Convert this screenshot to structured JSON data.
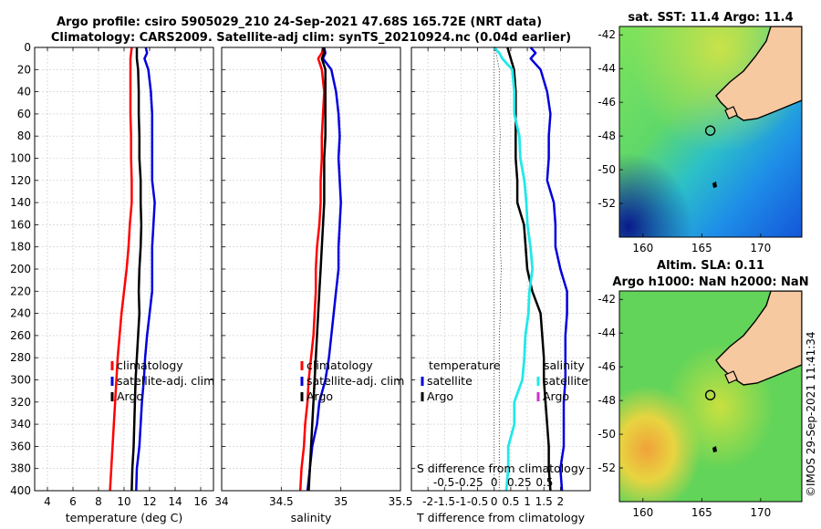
{
  "header": {
    "line1": "Argo profile: csiro 5905029_210 24-Sep-2021 47.68S 165.72E (NRT data)",
    "line2": "Climatology: CARS2009. Satellite-adj clim: synTS_20210924.nc (0.04d earlier)"
  },
  "colors": {
    "climatology": "#ff0000",
    "satellite": "#0000dd",
    "argo": "#000000",
    "s_sat": "#22e8e8",
    "s_argo": "#cc33cc",
    "land": "#f7c9a0"
  },
  "depth_axis": {
    "ylim": [
      0,
      400
    ],
    "ticks": [
      0,
      20,
      40,
      60,
      80,
      100,
      120,
      140,
      160,
      180,
      200,
      220,
      240,
      260,
      280,
      300,
      320,
      340,
      360,
      380,
      400
    ]
  },
  "chart_data": [
    {
      "id": "temperature",
      "type": "line",
      "xlabel": "temperature (deg C)",
      "ylabel": "",
      "xlim": [
        3,
        17
      ],
      "ylim": [
        400,
        0
      ],
      "xticks": [
        4,
        6,
        8,
        10,
        12,
        14,
        16
      ],
      "xtick_labels": [
        "4",
        "6",
        "8",
        "10",
        "12",
        "14",
        "16"
      ],
      "depth": [
        0,
        5,
        10,
        20,
        40,
        60,
        80,
        100,
        120,
        140,
        160,
        180,
        200,
        220,
        240,
        260,
        280,
        300,
        320,
        340,
        360,
        380,
        400
      ],
      "series": [
        {
          "name": "climatology",
          "values": [
            10.6,
            10.55,
            10.5,
            10.5,
            10.5,
            10.5,
            10.55,
            10.55,
            10.6,
            10.6,
            10.45,
            10.35,
            10.2,
            10.0,
            9.8,
            9.65,
            9.5,
            9.4,
            9.3,
            9.2,
            9.1,
            9.0,
            8.9
          ]
        },
        {
          "name": "satellite-adj. clim",
          "values": [
            11.7,
            11.8,
            11.6,
            11.9,
            12.1,
            12.2,
            12.2,
            12.2,
            12.2,
            12.4,
            12.3,
            12.2,
            12.2,
            12.2,
            12.0,
            11.8,
            11.65,
            11.55,
            11.4,
            11.3,
            11.2,
            11.0,
            10.95
          ]
        },
        {
          "name": "Argo",
          "values": [
            11.0,
            11.0,
            11.0,
            11.1,
            11.15,
            11.15,
            11.2,
            11.2,
            11.3,
            11.3,
            11.35,
            11.3,
            11.2,
            11.15,
            11.2,
            11.1,
            11.0,
            10.9,
            10.85,
            10.8,
            10.75,
            10.65,
            10.6
          ]
        }
      ],
      "legend": [
        "climatology",
        "satellite-adj. clim",
        "Argo"
      ]
    },
    {
      "id": "salinity",
      "type": "line",
      "xlabel": "salinity",
      "ylabel": "",
      "xlim": [
        34,
        35.5
      ],
      "xticks": [
        34,
        34.5,
        35,
        35.5
      ],
      "xtick_labels": [
        "34",
        "34.5",
        "35",
        "35.5"
      ],
      "depth": [
        0,
        5,
        10,
        20,
        40,
        60,
        80,
        100,
        120,
        140,
        160,
        180,
        200,
        220,
        240,
        260,
        280,
        300,
        320,
        340,
        360,
        380,
        400
      ],
      "series": [
        {
          "name": "climatology",
          "values": [
            34.85,
            34.84,
            34.81,
            34.84,
            34.86,
            34.85,
            34.84,
            34.84,
            34.83,
            34.83,
            34.82,
            34.8,
            34.79,
            34.79,
            34.78,
            34.77,
            34.75,
            34.73,
            34.72,
            34.7,
            34.69,
            34.67,
            34.66
          ]
        },
        {
          "name": "satellite-adj. clim",
          "values": [
            34.86,
            34.87,
            34.85,
            34.92,
            34.96,
            34.98,
            34.99,
            34.98,
            34.99,
            35.0,
            34.99,
            34.98,
            34.98,
            34.96,
            34.94,
            34.92,
            34.9,
            34.87,
            34.82,
            34.8,
            34.76,
            34.74,
            34.72
          ]
        },
        {
          "name": "Argo",
          "values": [
            34.85,
            34.86,
            34.84,
            34.87,
            34.87,
            34.87,
            34.87,
            34.86,
            34.86,
            34.86,
            34.85,
            34.84,
            34.83,
            34.82,
            34.81,
            34.8,
            34.79,
            34.78,
            34.77,
            34.76,
            34.75,
            34.74,
            34.73
          ]
        }
      ],
      "legend": [
        "climatology",
        "satellite-adj. clim",
        "Argo"
      ]
    },
    {
      "id": "difference",
      "type": "line",
      "xlabel": "T difference from climatology",
      "x2label": "S difference from climatology",
      "xlim": [
        -2.5,
        2.9
      ],
      "xticks": [
        -2,
        -1.5,
        -1,
        -0.5,
        0,
        0.5,
        1,
        1.5,
        2
      ],
      "xtick_labels": [
        "-2",
        "-1.5",
        "-1",
        "-0.5",
        "0",
        "0.5",
        "1",
        "1.5",
        "2"
      ],
      "s_xticks": [
        -0.5,
        -0.25,
        0,
        0.25,
        0.5
      ],
      "s_xtick_labels": [
        "-0.5",
        "-0.25",
        "0",
        "0.25",
        "0.5"
      ],
      "depth": [
        0,
        5,
        10,
        20,
        40,
        60,
        80,
        100,
        120,
        140,
        160,
        180,
        200,
        220,
        240,
        260,
        280,
        300,
        320,
        340,
        360,
        380,
        400
      ],
      "series": [
        {
          "name": "temperature satellite",
          "values": [
            1.1,
            1.25,
            1.1,
            1.4,
            1.6,
            1.7,
            1.65,
            1.65,
            1.6,
            1.8,
            1.85,
            1.85,
            2.0,
            2.2,
            2.2,
            2.15,
            2.15,
            2.15,
            2.1,
            2.1,
            2.1,
            2.0,
            2.05
          ]
        },
        {
          "name": "temperature Argo",
          "values": [
            0.4,
            0.45,
            0.5,
            0.6,
            0.65,
            0.65,
            0.65,
            0.65,
            0.7,
            0.7,
            0.9,
            0.95,
            1.0,
            1.15,
            1.4,
            1.45,
            1.5,
            1.5,
            1.55,
            1.6,
            1.65,
            1.65,
            1.7
          ]
        },
        {
          "name": "salinity satellite",
          "values": [
            0.0,
            0.05,
            0.08,
            0.18,
            0.2,
            0.2,
            0.25,
            0.26,
            0.3,
            0.32,
            0.33,
            0.36,
            0.38,
            0.35,
            0.34,
            0.31,
            0.3,
            0.28,
            0.2,
            0.2,
            0.14,
            0.14,
            0.12
          ]
        },
        {
          "name": "salinity Argo",
          "values": [
            0.0,
            0.02,
            0.03,
            0.05,
            0.05,
            0.05,
            0.06,
            0.05,
            0.05,
            0.06,
            0.06,
            0.06,
            0.07,
            0.06,
            0.06,
            0.05,
            0.05,
            0.05,
            0.05,
            0.05,
            0.05,
            0.05,
            0.05
          ]
        }
      ],
      "legend_left_title": "temperature",
      "legend_right_title": "salinity",
      "legend_left": [
        "satellite",
        "Argo"
      ],
      "legend_right": [
        "satellite",
        "Argo"
      ]
    },
    {
      "id": "sst_map",
      "type": "heatmap",
      "title": "sat. SST: 11.4 Argo: 11.4",
      "xlim": [
        158,
        173.5
      ],
      "ylim": [
        -54,
        -41.5
      ],
      "xticks": [
        160,
        165,
        170
      ],
      "xtick_labels": [
        "160",
        "165",
        "170"
      ],
      "yticks": [
        -42,
        -44,
        -46,
        -48,
        -50,
        -52
      ],
      "ytick_labels": [
        "-42",
        "-44",
        "-46",
        "-48",
        "-50",
        "-52"
      ],
      "profile_location": {
        "lon": 165.72,
        "lat": -47.68
      }
    },
    {
      "id": "sla_map",
      "type": "heatmap",
      "title": "Altim. SLA: 0.11",
      "subtitle": "Argo h1000: NaN h2000: NaN",
      "xlim": [
        158,
        173.5
      ],
      "ylim": [
        -54,
        -41.5
      ],
      "xticks": [
        160,
        165,
        170
      ],
      "xtick_labels": [
        "160",
        "165",
        "170"
      ],
      "yticks": [
        -42,
        -44,
        -46,
        -48,
        -50,
        -52
      ],
      "ytick_labels": [
        "-42",
        "-44",
        "-46",
        "-48",
        "-50",
        "-52"
      ],
      "profile_location": {
        "lon": 165.72,
        "lat": -47.68
      }
    }
  ],
  "watermark": "©IMOS 29-Sep-2021 11:41:34"
}
